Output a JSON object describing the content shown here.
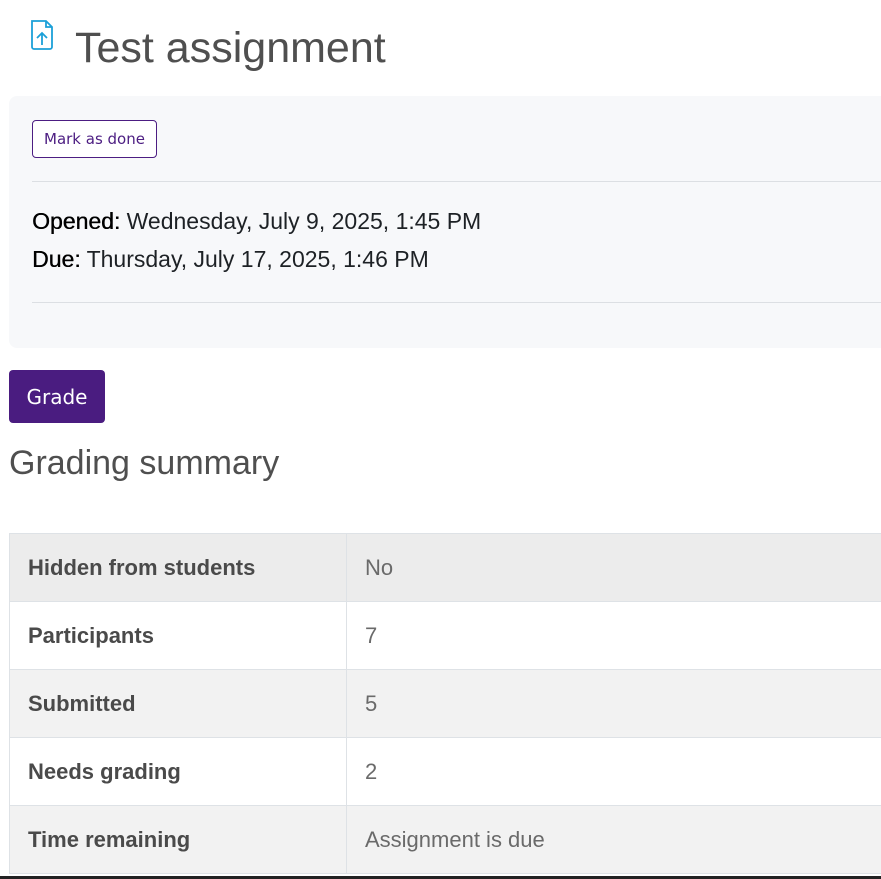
{
  "header": {
    "title": "Test assignment",
    "icon": "file-upload-icon",
    "icon_color": "#1ba0d8"
  },
  "activity": {
    "mark_done_label": "Mark as done",
    "opened_label": "Opened:",
    "opened_value": " Wednesday, July 9, 2025, 1:45 PM",
    "due_label": "Due:",
    "due_value": " Thursday, July 17, 2025, 1:46 PM"
  },
  "grade_button": "Grade",
  "accent": "#4a1c80",
  "summary": {
    "heading": "Grading summary",
    "rows": [
      {
        "label": "Hidden from students",
        "value": "No"
      },
      {
        "label": "Participants",
        "value": "7"
      },
      {
        "label": "Submitted",
        "value": "5"
      },
      {
        "label": "Needs grading",
        "value": "2"
      },
      {
        "label": "Time remaining",
        "value": "Assignment is due"
      }
    ]
  }
}
